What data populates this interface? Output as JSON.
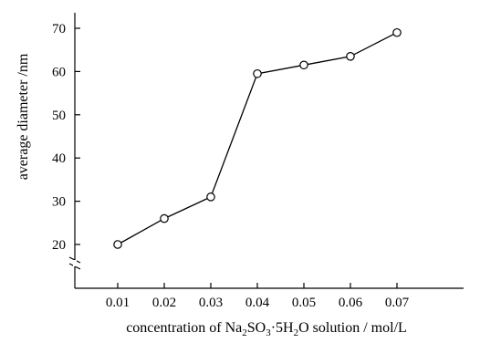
{
  "chart_data": {
    "type": "line",
    "title": "",
    "x": [
      0.01,
      0.02,
      0.03,
      0.04,
      0.05,
      0.06,
      0.07
    ],
    "series": [
      {
        "values": [
          20,
          26,
          31,
          59.5,
          61.5,
          63.5,
          69
        ]
      }
    ],
    "x_tick_labels": [
      "0.01",
      "0.02",
      "0.03",
      "0.04",
      "0.05",
      "0.06",
      "0.07"
    ],
    "y_ticks": [
      20,
      30,
      40,
      50,
      60,
      70
    ],
    "y_tick_labels": [
      "20",
      "30",
      "40",
      "50",
      "60",
      "70"
    ],
    "ylabel": "average diameter /nm",
    "xlabel": {
      "prefix": "concentration of Na",
      "sub1": "2",
      "mid1": "SO",
      "sub2": "3",
      "mid2": "·5H",
      "sub3": "2",
      "suffix": "O solution / mol/L"
    },
    "xlim": [
      0.0,
      0.08
    ],
    "ylim": [
      10,
      75
    ],
    "y_axis_break": true,
    "grid": false,
    "marker": "open-circle",
    "line_color": "#000000"
  }
}
